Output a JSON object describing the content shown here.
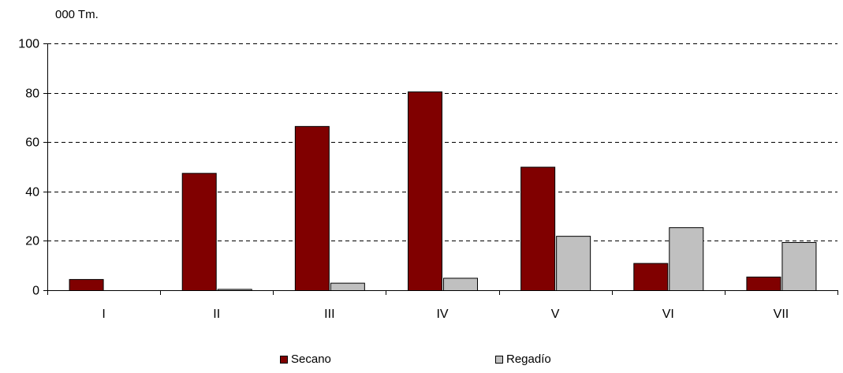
{
  "chart_data": {
    "type": "bar",
    "unit_label": "000 Tm.",
    "categories": [
      "I",
      "II",
      "III",
      "IV",
      "V",
      "VI",
      "VII"
    ],
    "series": [
      {
        "name": "Secano",
        "color": "#800000",
        "values": [
          4.5,
          47.5,
          66.5,
          80.5,
          50,
          11,
          5.5
        ]
      },
      {
        "name": "Regadío",
        "color": "#c0c0c0",
        "values": [
          0,
          0.5,
          3,
          5,
          22,
          25.5,
          19.5
        ]
      }
    ],
    "ylim": [
      0,
      100
    ],
    "yticks": [
      0,
      20,
      40,
      60,
      80,
      100
    ],
    "grid": "dashed-horizontal",
    "legend_position": "bottom"
  }
}
